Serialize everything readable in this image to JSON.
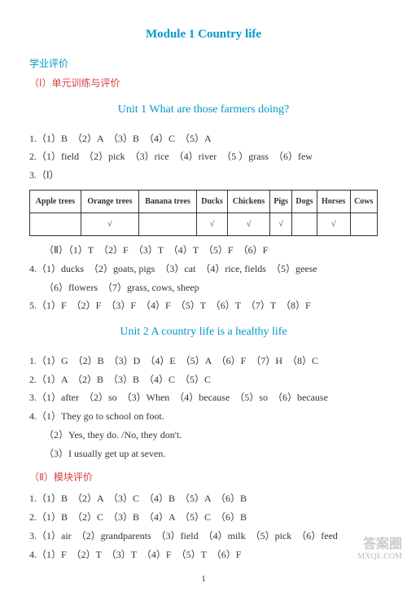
{
  "module_title": "Module 1   Country life",
  "section1": "学业评价",
  "sub1": "（Ⅰ）单元训练与评价",
  "unit1_title": "Unit 1   What are those farmers doing?",
  "u1": {
    "q1": "1.（1）B　（2）A　（3）B　（4）C　（5）A",
    "q2": "2.（1）field　（2）pick　（3）rice　（4）river　（5 ）grass　（6）few",
    "q3": "3.（Ⅰ）",
    "table_headers": [
      "Apple trees",
      "Orange trees",
      "Banana trees",
      "Ducks",
      "Chickens",
      "Pigs",
      "Dogs",
      "Horses",
      "Cows"
    ],
    "table_marks": [
      "",
      "√",
      "",
      "√",
      "√",
      "√",
      "",
      "√",
      ""
    ],
    "q3b": "（Ⅱ）（1）T　（2）F　（3）T　（4）T　（5）F　（6）F",
    "q4a": "4.（1）ducks　（2）goats, pigs　（3）cat　（4）rice, fields　（5）geese",
    "q4b": "（6）flowers　（7）grass, cows, sheep",
    "q5": "5.（1）F　（2）F　（3）F　（4）F　（5）T　（6）T　（7）T　（8）F"
  },
  "unit2_title": "Unit 2   A country life is a healthy life",
  "u2": {
    "q1": "1.（1）G　（2）B　（3）D　（4）E　（5）A　（6）F　（7）H　（8）C",
    "q2": "2.（1）A　（2）B　（3）B　（4）C　（5）C",
    "q3": "3.（1）after　（2）so　（3）When　（4）because　（5）so　（6）because",
    "q4a": "4.（1）They go to school on foot.",
    "q4b": "（2）Yes, they do.  /No, they don't.",
    "q4c": "（3）I usually get up at seven."
  },
  "sub2": "（Ⅱ）模块评价",
  "mod": {
    "q1": "1.（1）B　（2）A　（3）C　（4）B　（5）A　（6）B",
    "q2": "2.（1）B　（2）C　（3）B　（4）A　（5）C　（6）B",
    "q3": "3.（1）air　（2）grandparents　（3）field　（4）milk　（5）pick　（6）feed",
    "q4": "4.（1）F　（2）T　（3）T　（4）F　（5）T　（6）F"
  },
  "pagenum": "1",
  "watermark_top": "答案圈",
  "watermark_bottom": "MXQE.COM"
}
